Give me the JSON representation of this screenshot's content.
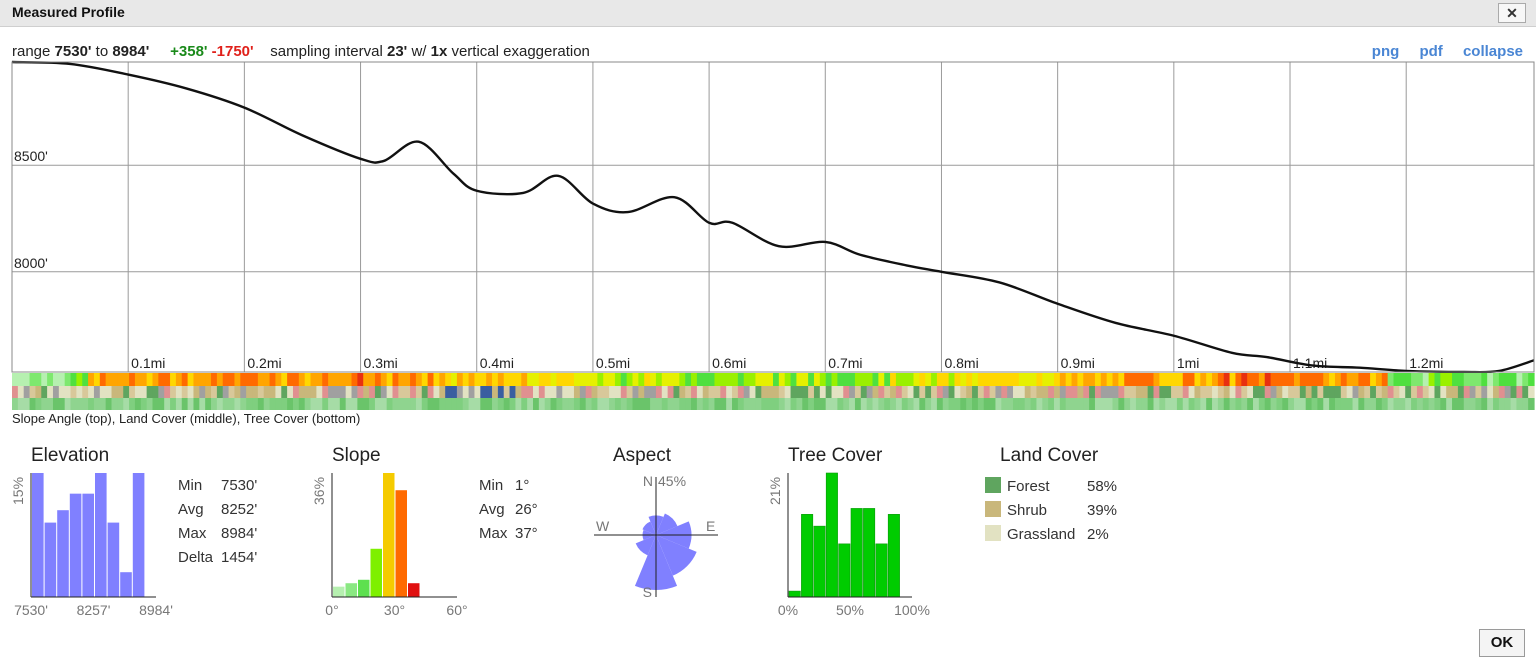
{
  "window": {
    "title": "Measured Profile",
    "close_label": "✕"
  },
  "info": {
    "range_label": "range",
    "range_min": "7530'",
    "range_to": "to",
    "range_max": "8984'",
    "gain": "+358'",
    "loss": "-1750'",
    "sampling_label": "sampling interval",
    "sampling_value": "23'",
    "w_label": "w/",
    "exaggeration_value": "1x",
    "exaggeration_label": "vertical exaggeration"
  },
  "links": {
    "png": "png",
    "pdf": "pdf",
    "collapse": "collapse"
  },
  "strip_caption": "Slope Angle (top), Land Cover (middle), Tree Cover (bottom)",
  "chart_data": [
    {
      "type": "line",
      "name": "elevation-profile",
      "x_tick_labels": [
        "0.1mi",
        "0.2mi",
        "0.3mi",
        "0.4mi",
        "0.5mi",
        "0.6mi",
        "0.7mi",
        "0.8mi",
        "0.9mi",
        "1mi",
        "1.1mi",
        "1.2mi"
      ],
      "y_tick_labels": [
        "8500'",
        "8000'"
      ],
      "y_ticks": [
        8500,
        8000
      ],
      "xlim": [
        0,
        1.31
      ],
      "ylim": [
        7530,
        8984
      ],
      "x": [
        0,
        0.05,
        0.1,
        0.15,
        0.2,
        0.25,
        0.3,
        0.32,
        0.35,
        0.38,
        0.4,
        0.44,
        0.47,
        0.5,
        0.53,
        0.57,
        0.6,
        0.62,
        0.66,
        0.7,
        0.73,
        0.77,
        0.8,
        0.85,
        0.9,
        0.95,
        1.0,
        1.05,
        1.08,
        1.12,
        1.16,
        1.2,
        1.25,
        1.28,
        1.31
      ],
      "y": [
        8984,
        8975,
        8925,
        8860,
        8770,
        8640,
        8530,
        8520,
        8610,
        8460,
        8380,
        8370,
        8450,
        8320,
        8280,
        8350,
        8230,
        8230,
        8120,
        8140,
        8080,
        8030,
        8000,
        7950,
        7850,
        7760,
        7700,
        7620,
        7600,
        7560,
        7550,
        7535,
        7530,
        7535,
        7585
      ],
      "grid": true
    },
    {
      "type": "bar",
      "name": "Elevation",
      "title": "Elevation",
      "ylabel": "15%",
      "x_tick_labels": [
        "7530'",
        "8257'",
        "8984'"
      ],
      "values": [
        15,
        9,
        10.5,
        12.5,
        12.5,
        15,
        9,
        3,
        15
      ],
      "ylim": [
        0,
        15
      ],
      "colors": [
        "#8080ff"
      ]
    },
    {
      "type": "bar",
      "name": "Slope",
      "title": "Slope",
      "ylabel": "36%",
      "x_tick_labels": [
        "0°",
        "30°",
        "60°"
      ],
      "categories": [
        "0-5°",
        "5-10°",
        "10-15°",
        "15-20°",
        "20-25°",
        "25-30°",
        "30-35°",
        "35-40°"
      ],
      "values": [
        3,
        4,
        5,
        14,
        36,
        31,
        4,
        0
      ],
      "ylim": [
        0,
        36
      ],
      "colors": [
        "#b6f0b0",
        "#8ae882",
        "#5de04f",
        "#7ef000",
        "#f5cb00",
        "#ff6a00",
        "#e01010",
        "#e01010"
      ]
    },
    {
      "type": "pie",
      "name": "Aspect",
      "title": "Aspect",
      "labels": [
        "N",
        "E",
        "S",
        "W"
      ],
      "ring_label": "45%",
      "petals_pct": [
        16,
        19,
        29,
        36,
        45,
        18,
        11,
        12
      ],
      "directions": [
        "N",
        "NE",
        "E",
        "SE",
        "S",
        "SW",
        "W",
        "NW"
      ],
      "color": "#8080ff"
    },
    {
      "type": "bar",
      "name": "Tree Cover",
      "title": "Tree Cover",
      "ylabel": "21%",
      "x_tick_labels": [
        "0%",
        "50%",
        "100%"
      ],
      "values": [
        1,
        14,
        12,
        21,
        9,
        15,
        15,
        9,
        14
      ],
      "ylim": [
        0,
        21
      ],
      "colors": [
        "#00cc00"
      ]
    }
  ],
  "elevation_stats": [
    {
      "label": "Min",
      "value": "7530'"
    },
    {
      "label": "Avg",
      "value": "8252'"
    },
    {
      "label": "Max",
      "value": "8984'"
    },
    {
      "label": "Delta",
      "value": "1454'"
    }
  ],
  "slope_stats": [
    {
      "label": "Min",
      "value": "1°"
    },
    {
      "label": "Avg",
      "value": "26°"
    },
    {
      "label": "Max",
      "value": "37°"
    }
  ],
  "land_cover": {
    "title": "Land Cover",
    "items": [
      {
        "label": "Forest",
        "value": "58%",
        "color": "#5fa55f"
      },
      {
        "label": "Shrub",
        "value": "39%",
        "color": "#c9b77b"
      },
      {
        "label": "Grassland",
        "value": "2%",
        "color": "#e2e2c2"
      }
    ]
  },
  "ok_label": "OK"
}
